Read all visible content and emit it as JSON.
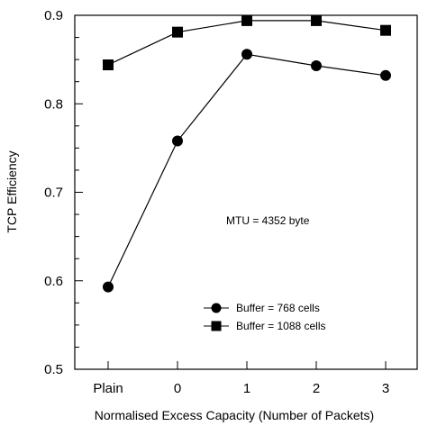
{
  "chart_data": {
    "type": "line",
    "categories": [
      "Plain",
      "0",
      "1",
      "2",
      "3"
    ],
    "xlabel": "Normalised Excess Capacity (Number of Packets)",
    "ylabel": "TCP Efficiency",
    "ylim": [
      0.5,
      0.9
    ],
    "yticks": [
      "0.5",
      "0.6",
      "0.7",
      "0.8",
      "0.9"
    ],
    "grid": false,
    "legend_position": "bottom-right",
    "annotation": "MTU = 4352 byte",
    "series": [
      {
        "name": "Buffer = 768 cells",
        "marker": "circle",
        "color": "#000000",
        "values": [
          0.593,
          0.758,
          0.856,
          0.843,
          0.832
        ]
      },
      {
        "name": "Buffer = 1088 cells",
        "marker": "square",
        "color": "#000000",
        "values": [
          0.844,
          0.881,
          0.894,
          0.894,
          0.883
        ]
      }
    ]
  }
}
